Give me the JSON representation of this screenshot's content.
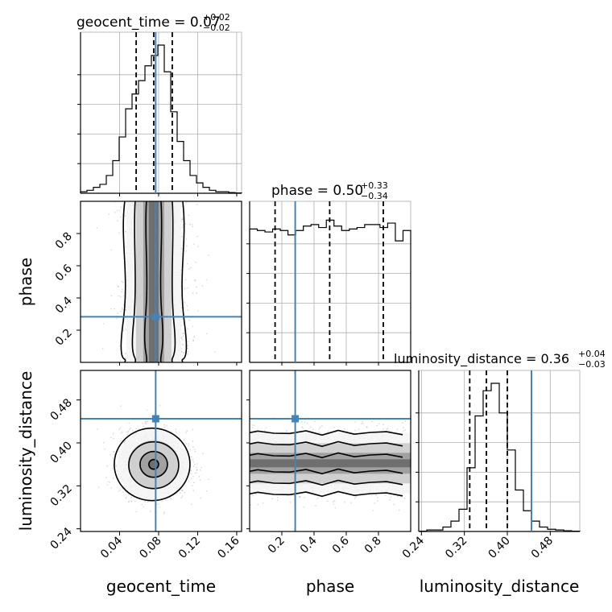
{
  "chart_data": {
    "type": "corner",
    "parameters": [
      {
        "name": "geocent_time",
        "title_main": "geocent_time = 0.07",
        "title_sup": "+0.02",
        "title_sub": "−0.02",
        "range": [
          0.0,
          0.165
        ],
        "ticks": [
          0.04,
          0.08,
          0.12,
          0.16
        ],
        "tick_labels": [
          "0.04",
          "0.08",
          "0.12",
          "0.16"
        ],
        "quantiles": [
          0.057,
          0.075,
          0.094
        ],
        "truth": 0.077
      },
      {
        "name": "phase",
        "title_main": "phase = 0.50",
        "title_sup": "+0.33",
        "title_sub": "−0.34",
        "range": [
          0.0,
          1.0
        ],
        "ticks": [
          0.2,
          0.4,
          0.6,
          0.8
        ],
        "tick_labels": [
          "0.2",
          "0.4",
          "0.6",
          "0.8"
        ],
        "quantiles": [
          0.158,
          0.497,
          0.83
        ],
        "truth": 0.283
      },
      {
        "name": "luminosity_distance",
        "title_main": "luminosity_distance = 0.36",
        "title_sup": "+0.04",
        "title_sub": "−0.03",
        "range": [
          0.235,
          0.535
        ],
        "ticks": [
          0.24,
          0.32,
          0.4,
          0.48
        ],
        "tick_labels": [
          "0.24",
          "0.32",
          "0.40",
          "0.48"
        ],
        "quantiles": [
          0.33,
          0.361,
          0.4
        ],
        "truth": 0.445
      }
    ],
    "histograms": [
      {
        "param": "geocent_time",
        "counts": [
          0.01,
          0.02,
          0.04,
          0.06,
          0.12,
          0.22,
          0.38,
          0.57,
          0.67,
          0.76,
          0.86,
          0.93,
          1.0,
          0.82,
          0.55,
          0.35,
          0.22,
          0.12,
          0.07,
          0.04,
          0.02,
          0.01,
          0.01,
          0.005,
          0.002
        ]
      },
      {
        "param": "phase",
        "counts": [
          0.9,
          0.89,
          0.88,
          0.9,
          0.89,
          0.86,
          0.89,
          0.92,
          0.93,
          0.91,
          0.96,
          0.92,
          0.89,
          0.9,
          0.91,
          0.93,
          0.93,
          0.91,
          0.94,
          0.82,
          0.89
        ]
      },
      {
        "param": "luminosity_distance",
        "counts": [
          0.002,
          0.01,
          0.01,
          0.03,
          0.07,
          0.15,
          0.43,
          0.78,
          0.95,
          1.0,
          0.8,
          0.55,
          0.28,
          0.14,
          0.07,
          0.03,
          0.015,
          0.01,
          0.005,
          0.002
        ]
      }
    ],
    "grid": true
  },
  "axes_labels": {
    "x_bottom": [
      "geocent_time",
      "phase",
      "luminosity_distance"
    ],
    "y_left": [
      "phase",
      "luminosity_distance"
    ]
  },
  "colors": {
    "truth": "#4682b4",
    "hist": "#000000",
    "scatter": "#9a9a9a",
    "grid": "#b0b0b0",
    "density_fill": [
      "#f4f4f4",
      "#c9c9c9",
      "#999999",
      "#666666",
      "#333333"
    ]
  }
}
